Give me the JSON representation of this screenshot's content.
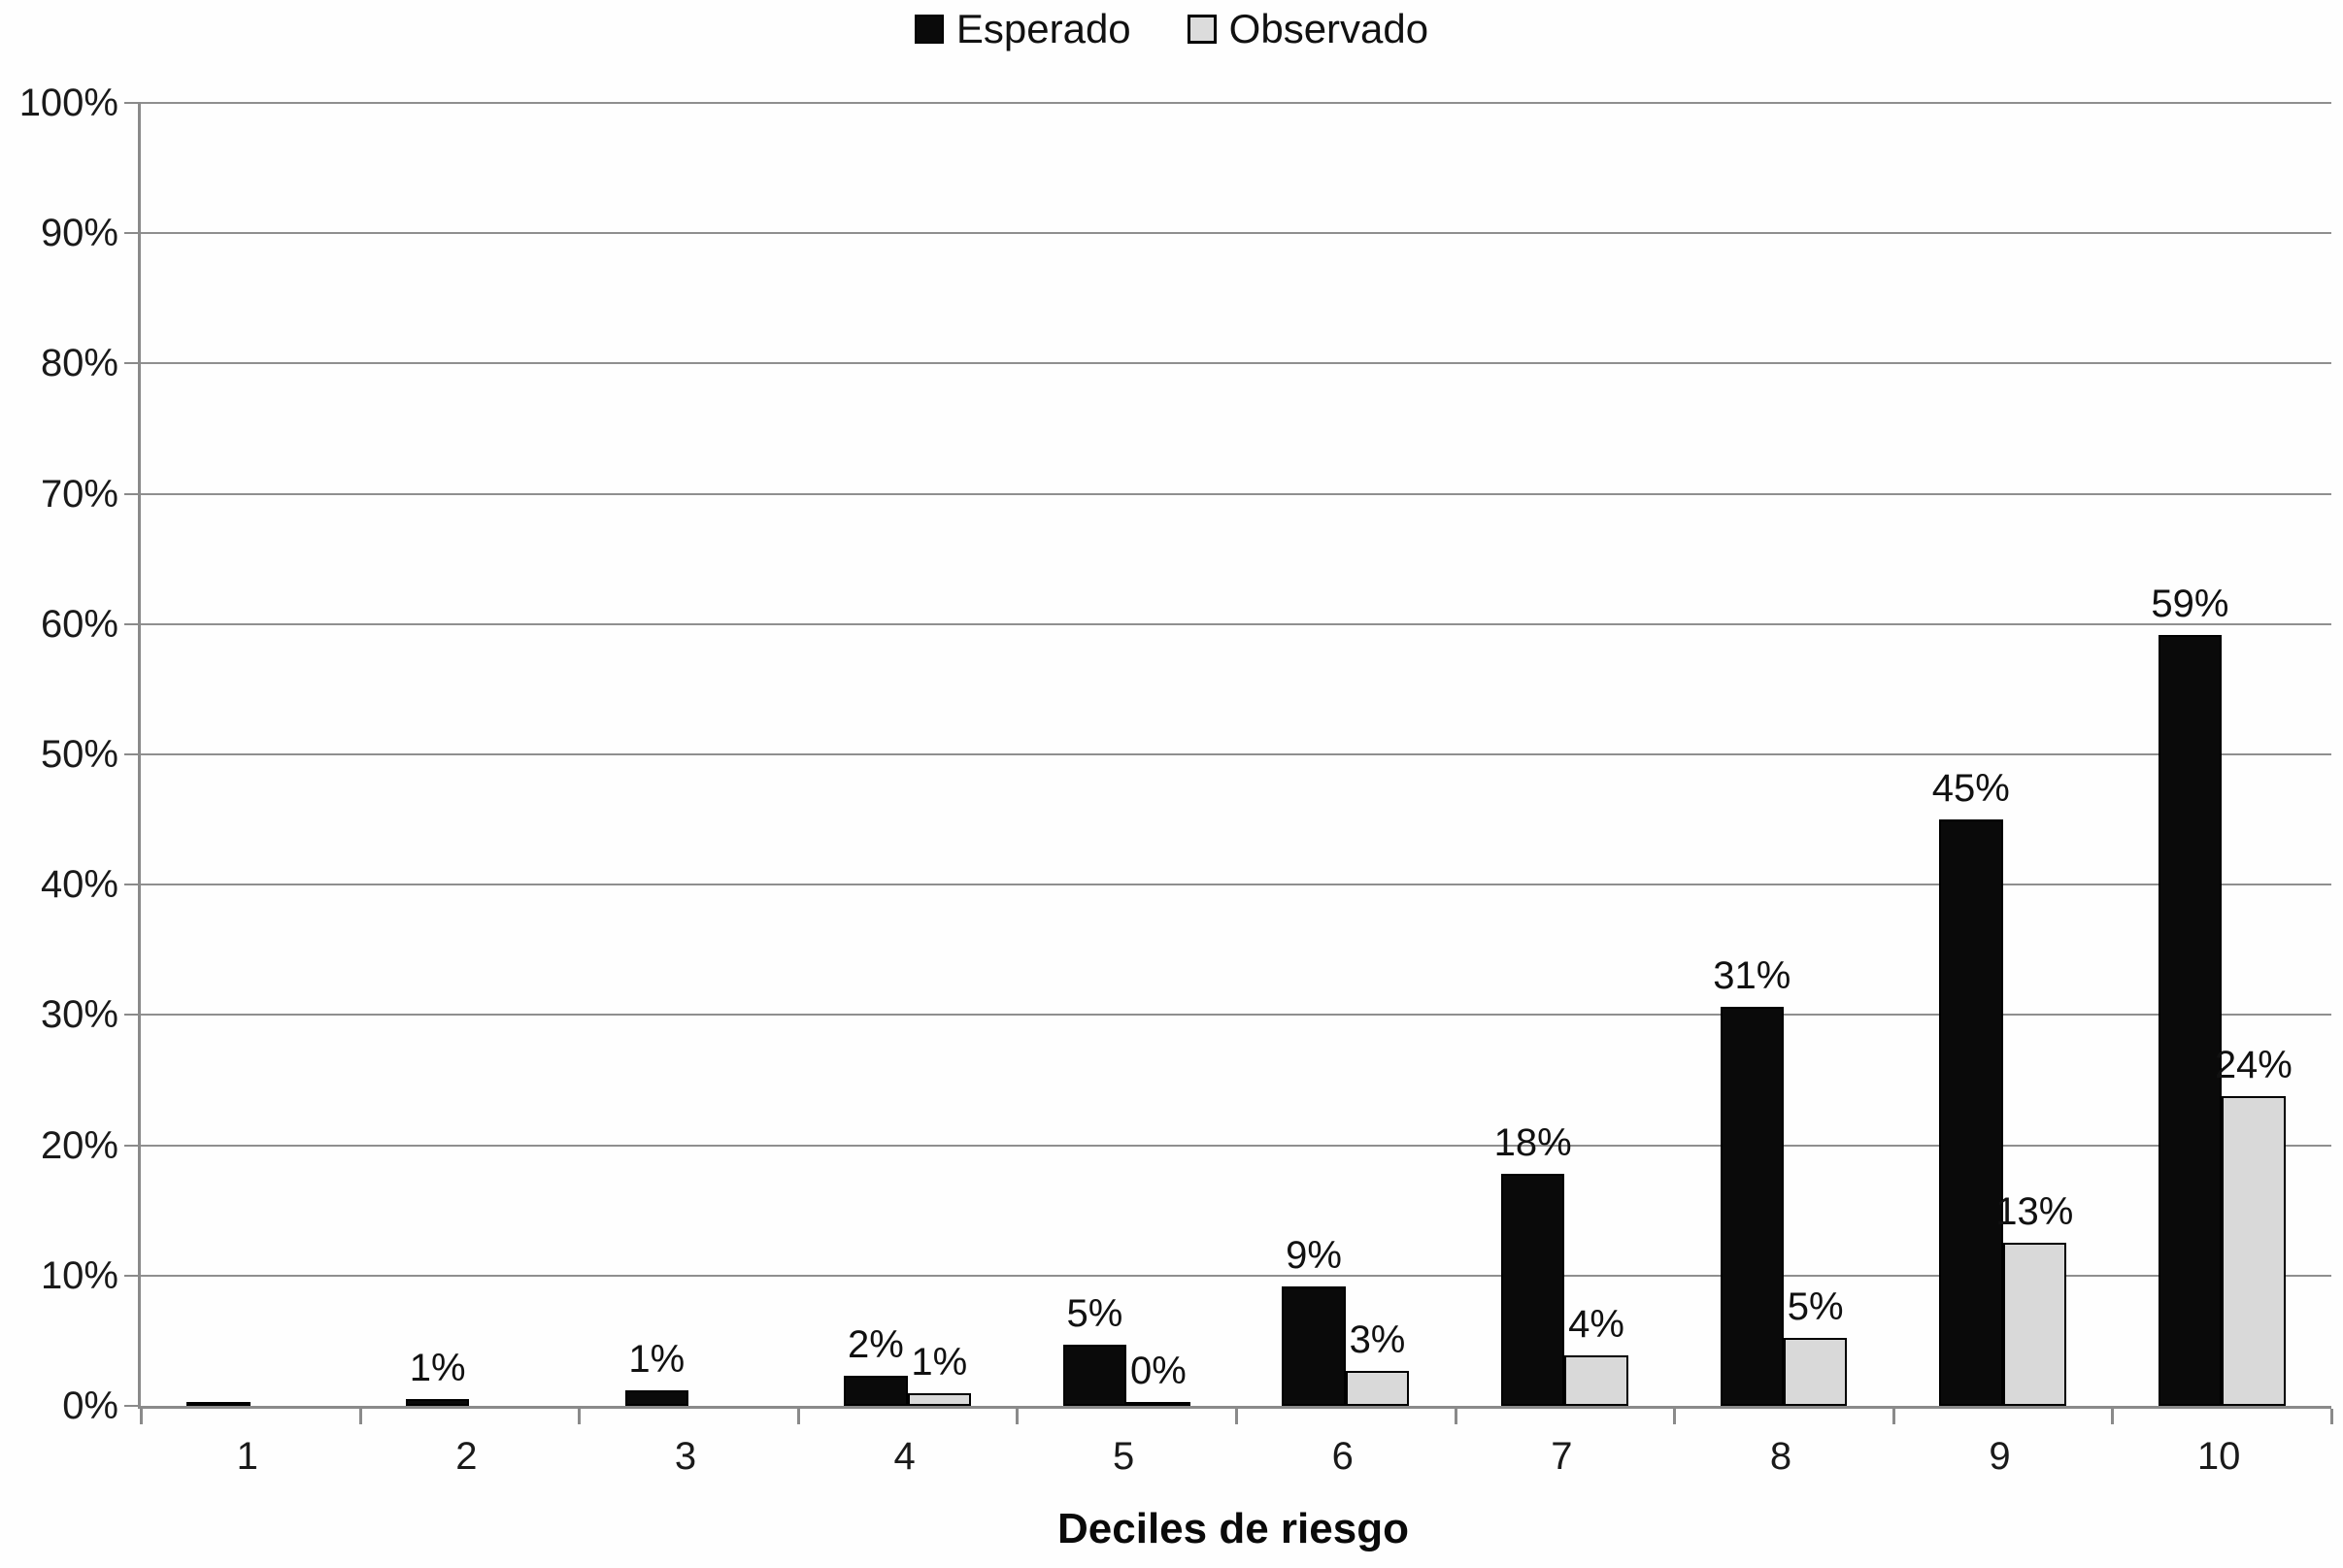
{
  "chart_data": {
    "type": "bar",
    "title": "",
    "xlabel": "Deciles de riesgo",
    "ylabel": "",
    "categories": [
      "1",
      "2",
      "3",
      "4",
      "5",
      "6",
      "7",
      "8",
      "9",
      "10"
    ],
    "series": [
      {
        "name": "Esperado",
        "color": "#0a0a0a",
        "border_color": "#000000",
        "values": [
          0.3,
          0.5,
          1.2,
          2.3,
          4.7,
          9.2,
          17.8,
          30.6,
          45.0,
          59.2
        ],
        "labels": [
          "",
          "1%",
          "1%",
          "2%",
          "5%",
          "9%",
          "18%",
          "31%",
          "45%",
          "59%"
        ]
      },
      {
        "name": "Observado",
        "color": "#d9d9d9",
        "border_color": "#000000",
        "values": [
          0,
          0,
          0,
          1.0,
          0.3,
          2.7,
          3.9,
          5.2,
          12.5,
          23.8
        ],
        "labels": [
          "",
          "",
          "",
          "1%",
          "0%",
          "3%",
          "4%",
          "5%",
          "13%",
          "24%"
        ]
      }
    ],
    "ylim": [
      0,
      100
    ],
    "yticks": [
      "0%",
      "10%",
      "20%",
      "30%",
      "40%",
      "50%",
      "60%",
      "70%",
      "80%",
      "90%",
      "100%"
    ],
    "grid": true,
    "legend_position": "top-center"
  },
  "legend": {
    "items": [
      {
        "label": "Esperado",
        "swatch_color": "#0a0a0a"
      },
      {
        "label": "Observado",
        "swatch_color": "#d9d9d9"
      }
    ]
  },
  "axis": {
    "x_title": "Deciles de riesgo"
  },
  "colors": {
    "background": "#fefefe",
    "gridline": "#8f8f8f",
    "axis_line": "#8a8a8a",
    "text": "#1a1a1a",
    "bar_esperado": "#0a0a0a",
    "bar_observado": "#d9d9d9",
    "bar_border": "#000000"
  }
}
